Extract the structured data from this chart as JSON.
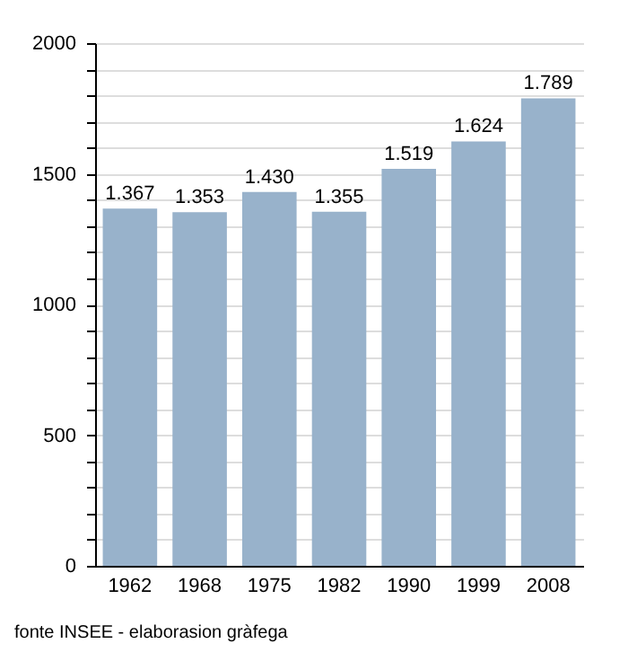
{
  "chart_data": {
    "type": "bar",
    "categories": [
      "1962",
      "1968",
      "1975",
      "1982",
      "1990",
      "1999",
      "2008"
    ],
    "values": [
      1367,
      1353,
      1430,
      1355,
      1519,
      1624,
      1789
    ],
    "value_labels": [
      "1.367",
      "1.353",
      "1.430",
      "1.355",
      "1.519",
      "1.624",
      "1.789"
    ],
    "color": "#98b2cb",
    "ylim": [
      0,
      2000
    ],
    "yticks": [
      0,
      {
        "value": 100,
        "label": null
      },
      {
        "value": 200,
        "label": null
      },
      {
        "value": 300,
        "label": null
      },
      {
        "value": 400,
        "label": null
      },
      500,
      {
        "value": 600,
        "label": null
      },
      {
        "value": 700,
        "label": null
      },
      {
        "value": 800,
        "label": null
      },
      {
        "value": 900,
        "label": null
      },
      1000,
      {
        "value": 1100,
        "label": null
      },
      {
        "value": 1200,
        "label": null
      },
      {
        "value": 1300,
        "label": null
      },
      {
        "value": 1400,
        "label": null
      },
      1500,
      {
        "value": 1600,
        "label": null
      },
      {
        "value": 1700,
        "label": null
      },
      {
        "value": 1800,
        "label": null
      },
      {
        "value": 1900,
        "label": null
      },
      2000
    ],
    "grid": "y",
    "annotations": [
      "fonte INSEE - elaborasion gràfega"
    ]
  }
}
